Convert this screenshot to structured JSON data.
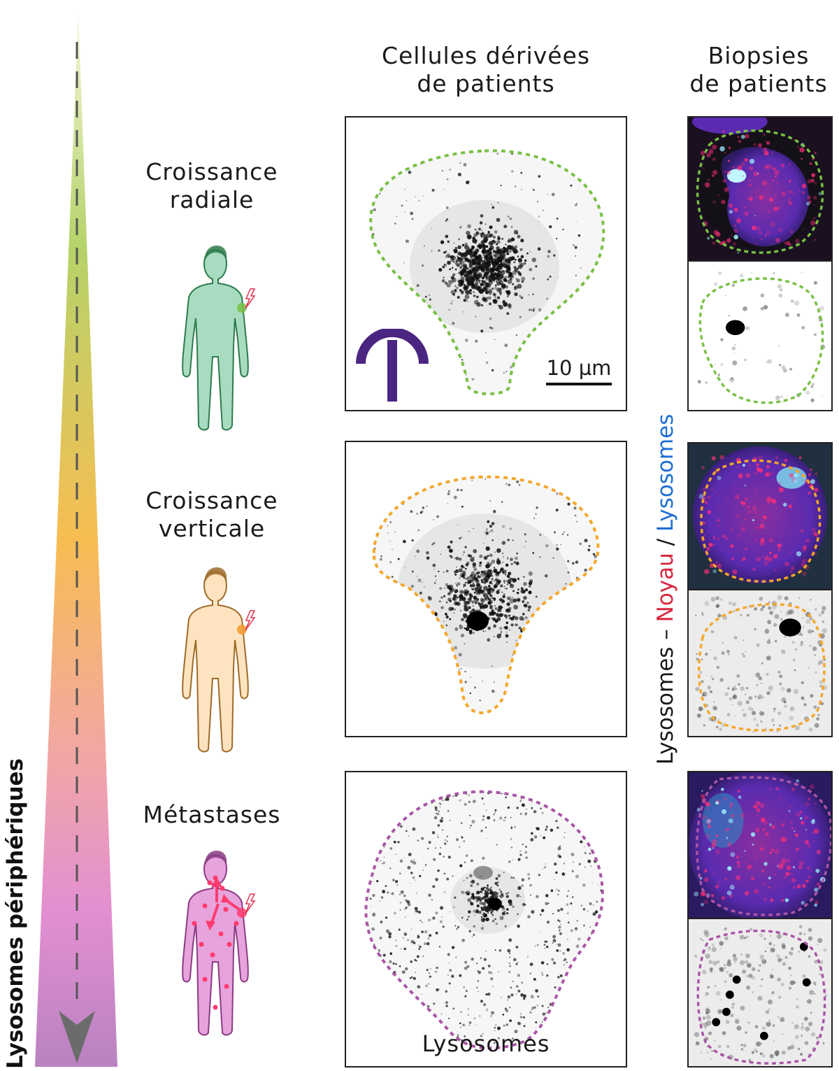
{
  "header": {
    "col_cells_line1": "Cellules dérivées",
    "col_cells_line2": "de patients",
    "col_biopsies_line1": "Biopsies",
    "col_biopsies_line2": "de patients"
  },
  "axis": {
    "label": "Lysosomes périphériques",
    "gradient_colors": [
      "#f4f7d9",
      "#b5d36a",
      "#f7bd52",
      "#f2a7a3",
      "#e38fd2",
      "#b982c1"
    ],
    "arrow_color": "#6b6b6b"
  },
  "stages": [
    {
      "line1": "Croissance",
      "line2": "radiale",
      "body_color": "#a8dcc0",
      "outline_color": "#2f7a4c",
      "spot_color": "#78c044",
      "dot_color": "#78c044"
    },
    {
      "line1": "Croissance",
      "line2": "verticale",
      "body_color": "#fde3bf",
      "outline_color": "#9e6b2a",
      "spot_color": "#f39a2a",
      "dot_color": "#f4a62a"
    },
    {
      "line1": "Métastases",
      "line2": "",
      "body_color": "#e7a3dc",
      "outline_color": "#8a3c84",
      "spot_color": "#ff3b6e",
      "dot_color": "#a955a8"
    }
  ],
  "scale_bar": {
    "label": "10 µm"
  },
  "cells_footer": "Lysosomes",
  "biopsy_label": {
    "part1": "Lysosomes",
    "sep1": " – ",
    "part2": "Noyau",
    "sep2": " / ",
    "part3": "Lysosomes",
    "color1": "#1a1a1a",
    "color2": "#d7263d",
    "color3": "#1f6fd1"
  },
  "logo_color": "#4b2582"
}
